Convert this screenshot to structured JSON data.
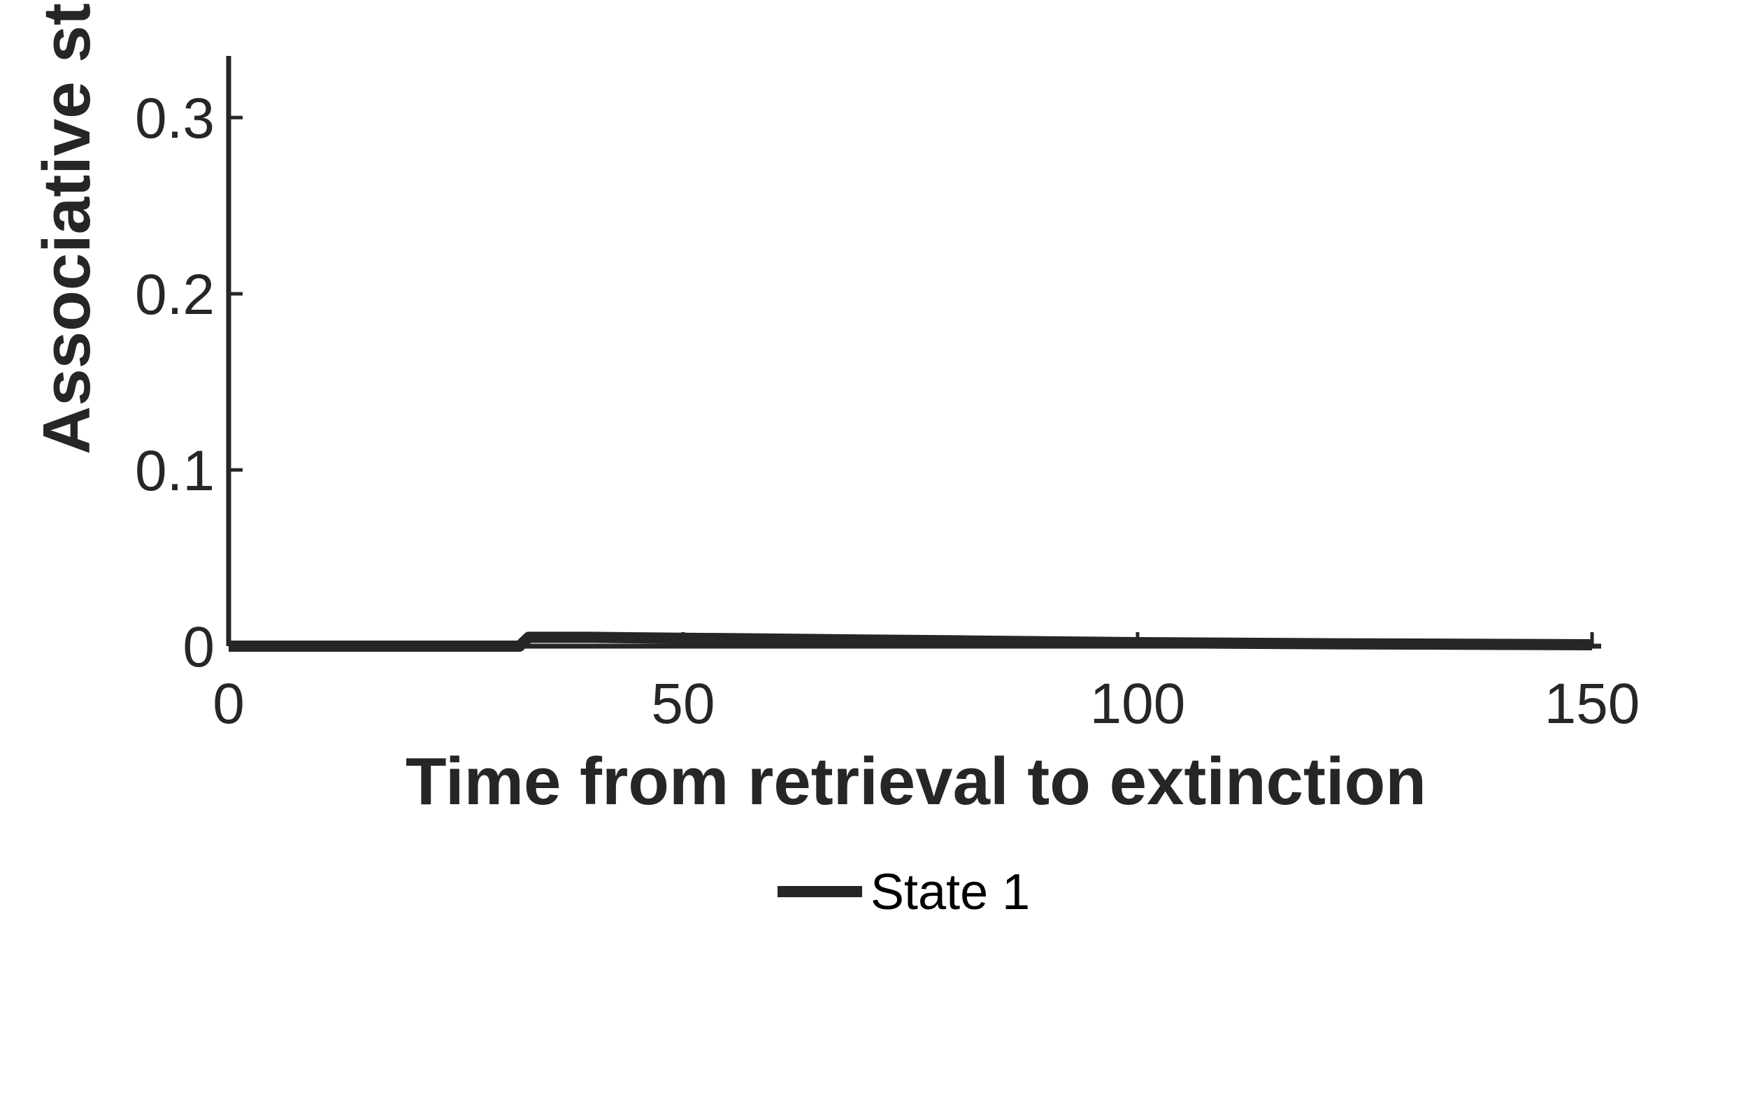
{
  "chart_data": {
    "type": "line",
    "xlabel": "Time from retrieval to extinction",
    "ylabel": "Associative strength",
    "xlim": [
      0,
      151
    ],
    "ylim": [
      0,
      0.335
    ],
    "xticks": [
      0,
      50,
      100,
      150
    ],
    "xtick_labels": [
      "0",
      "50",
      "100",
      "150"
    ],
    "yticks": [
      0,
      0.1,
      0.2,
      0.3
    ],
    "ytick_labels": [
      "0",
      "0.1",
      "0.2",
      "0.3"
    ],
    "grid": false,
    "legend_position": "bottom",
    "series": [
      {
        "name": "State 1",
        "color": "#262626",
        "x": [
          0,
          32,
          33,
          40,
          50,
          60,
          70,
          80,
          90,
          100,
          110,
          120,
          130,
          140,
          150
        ],
        "y": [
          0,
          0,
          0.005,
          0.005,
          0.0045,
          0.004,
          0.0035,
          0.003,
          0.0025,
          0.002,
          0.0017,
          0.0014,
          0.0012,
          0.001,
          0.0008
        ]
      }
    ]
  }
}
